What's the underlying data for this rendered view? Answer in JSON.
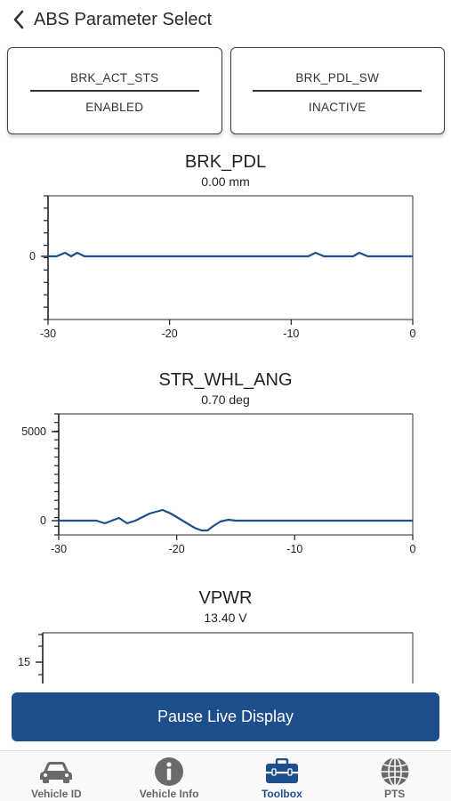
{
  "header": {
    "title": "ABS Parameter Select"
  },
  "status_cards": [
    {
      "name": "BRK_ACT_STS",
      "value": "ENABLED"
    },
    {
      "name": "BRK_PDL_SW",
      "value": "INACTIVE"
    }
  ],
  "graphs": [
    {
      "title": "BRK_PDL",
      "value": "0.00 mm"
    },
    {
      "title": "STR_WHL_ANG",
      "value": "0.70 deg"
    },
    {
      "title": "VPWR",
      "value": "13.40 V"
    }
  ],
  "chart_data": [
    {
      "type": "line",
      "title": "BRK_PDL",
      "x_ticks": [
        "-30",
        "-20",
        "-10",
        "0"
      ],
      "y_ticks": [
        "0"
      ],
      "xlim": [
        -30,
        0
      ],
      "series": [
        {
          "x": [
            -30,
            -29.3,
            -28.6,
            -28.1,
            -27.6,
            -27,
            -20,
            -10,
            -8.6,
            -8,
            -7.3,
            -6,
            -4.9,
            -4.4,
            -3.7,
            -3,
            0
          ],
          "y": [
            0,
            0,
            0.1,
            0,
            0.1,
            0,
            0,
            0,
            0,
            0.1,
            0,
            0,
            0,
            0.1,
            0,
            0,
            0
          ]
        }
      ]
    },
    {
      "type": "line",
      "title": "STR_WHL_ANG",
      "x_ticks": [
        "-30",
        "-20",
        "-10",
        "0"
      ],
      "y_ticks": [
        "5000",
        "0"
      ],
      "xlim": [
        -30,
        0
      ],
      "ylim": [
        -800,
        6000
      ],
      "series": [
        {
          "x": [
            -30,
            -26.8,
            -26.1,
            -25.5,
            -24.9,
            -24.2,
            -23.5,
            -22.3,
            -21.2,
            -20.5,
            -19.5,
            -18.5,
            -17.9,
            -17.4,
            -16.9,
            -16.3,
            -15.6,
            -15,
            -10,
            0
          ],
          "y": [
            0,
            0,
            -150,
            0,
            150,
            -150,
            0,
            400,
            600,
            400,
            0,
            -400,
            -550,
            -550,
            -300,
            -50,
            50,
            0,
            0,
            0
          ]
        }
      ]
    },
    {
      "type": "line",
      "title": "VPWR",
      "y_ticks": [
        "15"
      ],
      "series": []
    }
  ],
  "pause_button": {
    "label": "Pause Live Display"
  },
  "tabs": [
    {
      "label": "Vehicle ID",
      "icon": "car-icon"
    },
    {
      "label": "Vehicle Info",
      "icon": "info-icon"
    },
    {
      "label": "Toolbox",
      "icon": "toolbox-icon"
    },
    {
      "label": "PTS",
      "icon": "globe-icon"
    }
  ],
  "colors": {
    "accent": "#1f4e8c",
    "line": "#1f4e8c",
    "tab_inactive": "#666666"
  }
}
